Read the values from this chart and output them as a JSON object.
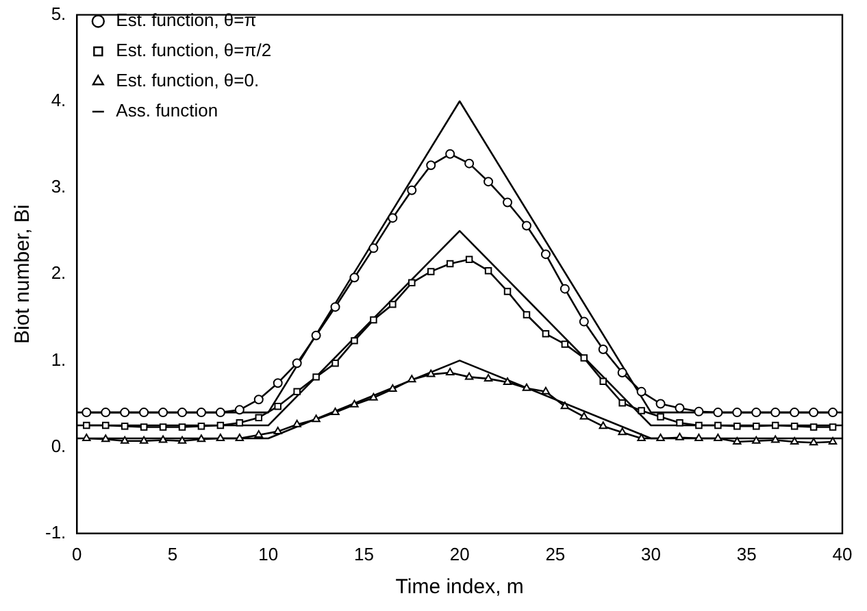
{
  "chart_data": {
    "type": "line",
    "xlabel": "Time index, m",
    "ylabel": "Biot number, Bi",
    "x": [
      0.5,
      1.5,
      2.5,
      3.5,
      4.5,
      5.5,
      6.5,
      7.5,
      8.5,
      9.5,
      10.5,
      11.5,
      12.5,
      13.5,
      14.5,
      15.5,
      16.5,
      17.5,
      18.5,
      19.5,
      20.5,
      21.5,
      22.5,
      23.5,
      24.5,
      25.5,
      26.5,
      27.5,
      28.5,
      29.5,
      30.5,
      31.5,
      32.5,
      33.5,
      34.5,
      35.5,
      36.5,
      37.5,
      38.5,
      39.5
    ],
    "series": [
      {
        "name": "Est. function, θ=π",
        "color": "#000000",
        "marker": "circle",
        "values": [
          0.4,
          0.4,
          0.4,
          0.4,
          0.4,
          0.4,
          0.4,
          0.4,
          0.43,
          0.55,
          0.74,
          0.97,
          1.29,
          1.62,
          1.96,
          2.3,
          2.65,
          2.97,
          3.26,
          3.39,
          3.28,
          3.07,
          2.83,
          2.56,
          2.23,
          1.83,
          1.45,
          1.13,
          0.86,
          0.64,
          0.5,
          0.45,
          0.41,
          0.4,
          0.4,
          0.4,
          0.4,
          0.4,
          0.4,
          0.4
        ]
      },
      {
        "name": "Est. function, θ=π/2",
        "color": "#000000",
        "marker": "square",
        "values": [
          0.25,
          0.25,
          0.24,
          0.23,
          0.23,
          0.23,
          0.24,
          0.25,
          0.28,
          0.34,
          0.47,
          0.64,
          0.81,
          0.97,
          1.23,
          1.47,
          1.65,
          1.9,
          2.03,
          2.12,
          2.17,
          2.04,
          1.8,
          1.53,
          1.31,
          1.19,
          1.03,
          0.76,
          0.51,
          0.42,
          0.35,
          0.28,
          0.25,
          0.25,
          0.24,
          0.24,
          0.25,
          0.24,
          0.23,
          0.23
        ]
      },
      {
        "name": "Est. function, θ=0.",
        "color": "#000000",
        "marker": "triangle",
        "values": [
          0.1,
          0.09,
          0.07,
          0.07,
          0.08,
          0.07,
          0.09,
          0.1,
          0.1,
          0.14,
          0.18,
          0.26,
          0.32,
          0.4,
          0.49,
          0.57,
          0.67,
          0.78,
          0.84,
          0.86,
          0.81,
          0.79,
          0.75,
          0.68,
          0.64,
          0.47,
          0.35,
          0.24,
          0.17,
          0.1,
          0.1,
          0.11,
          0.1,
          0.1,
          0.06,
          0.07,
          0.08,
          0.06,
          0.05,
          0.06
        ]
      },
      {
        "name": "Ass. function",
        "color": "#000000",
        "marker": "none",
        "x": [
          0,
          10,
          20,
          30,
          40
        ],
        "values": [
          0.4,
          0.4,
          4.0,
          0.4,
          0.4
        ]
      },
      {
        "color": "#000000",
        "marker": "none",
        "x": [
          0,
          10,
          20,
          30,
          40
        ],
        "values": [
          0.25,
          0.25,
          2.5,
          0.25,
          0.25
        ]
      },
      {
        "color": "#000000",
        "marker": "none",
        "x": [
          0,
          10,
          20,
          30,
          40
        ],
        "values": [
          0.1,
          0.1,
          1.0,
          0.1,
          0.1
        ]
      }
    ],
    "xlim": [
      0,
      40
    ],
    "xticks": [
      0,
      5,
      10,
      15,
      20,
      25,
      30,
      35,
      40
    ],
    "ylim": [
      -1,
      5
    ],
    "yticks": [
      {
        "value": -1,
        "label": "-1."
      },
      {
        "value": 0,
        "label": "0."
      },
      {
        "value": 1,
        "label": "1."
      },
      {
        "value": 2,
        "label": "2."
      },
      {
        "value": 3,
        "label": "3."
      },
      {
        "value": 4,
        "label": "4."
      },
      {
        "value": 5,
        "label": "5."
      }
    ],
    "grid": false,
    "legend": "top left",
    "line_style": "solid"
  }
}
